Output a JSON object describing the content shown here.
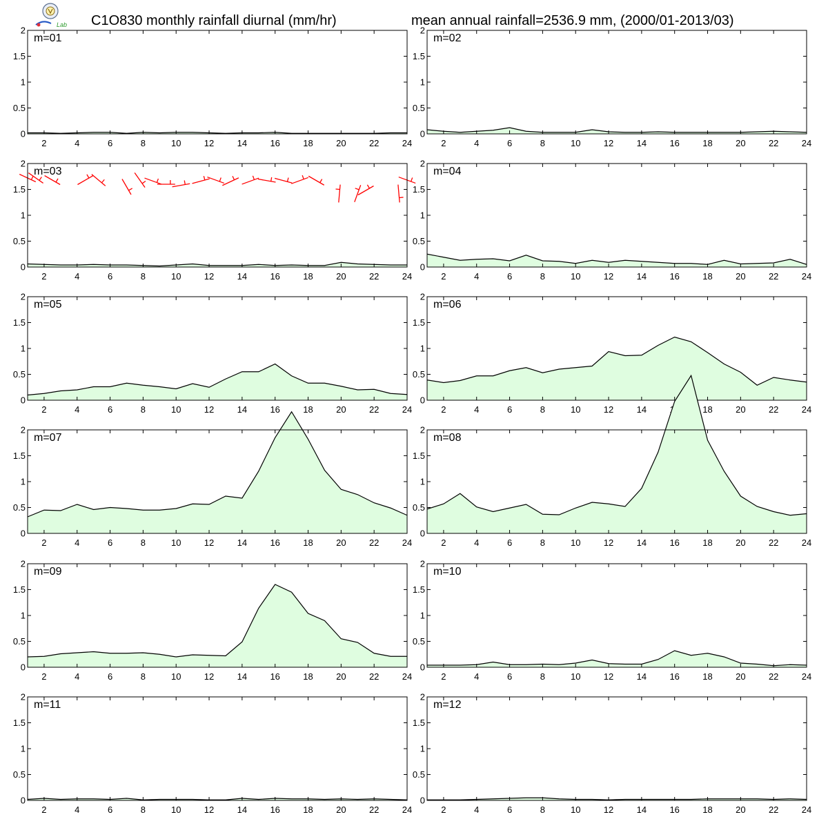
{
  "title_left": "C1O830 monthly rainfall diurnal (mm/hr)",
  "title_right": "mean annual rainfall=2536.9 mm, (2000/01-2013/03)",
  "logo": {
    "text": "Lab"
  },
  "colors": {
    "fill": "#dffde0",
    "line": "#000000",
    "wind": "#ff0000"
  },
  "chart_data": [
    {
      "type": "area",
      "panel_label": "m=01",
      "x": [
        1,
        2,
        3,
        4,
        5,
        6,
        7,
        8,
        9,
        10,
        11,
        12,
        13,
        14,
        15,
        16,
        17,
        18,
        19,
        20,
        21,
        22,
        23,
        24
      ],
      "values": [
        0.02,
        0.02,
        0.01,
        0.02,
        0.03,
        0.03,
        0.01,
        0.03,
        0.02,
        0.03,
        0.03,
        0.02,
        0.01,
        0.02,
        0.02,
        0.03,
        0.01,
        0.01,
        0.01,
        0.01,
        0.01,
        0.01,
        0.02,
        0.02
      ],
      "ylim": [
        0,
        2
      ],
      "xlim": [
        1,
        24
      ],
      "yticks": [
        0,
        0.5,
        1,
        1.5,
        2
      ],
      "xticks": [
        2,
        4,
        6,
        8,
        10,
        12,
        14,
        16,
        18,
        20,
        22,
        24
      ]
    },
    {
      "type": "area",
      "panel_label": "m=02",
      "x": [
        1,
        2,
        3,
        4,
        5,
        6,
        7,
        8,
        9,
        10,
        11,
        12,
        13,
        14,
        15,
        16,
        17,
        18,
        19,
        20,
        21,
        22,
        23,
        24
      ],
      "values": [
        0.08,
        0.05,
        0.03,
        0.05,
        0.07,
        0.12,
        0.05,
        0.03,
        0.03,
        0.03,
        0.08,
        0.04,
        0.03,
        0.03,
        0.04,
        0.03,
        0.03,
        0.03,
        0.03,
        0.03,
        0.04,
        0.05,
        0.04,
        0.03
      ],
      "ylim": [
        0,
        2
      ],
      "xlim": [
        1,
        24
      ],
      "yticks": [
        0,
        0.5,
        1,
        1.5,
        2
      ],
      "xticks": [
        2,
        4,
        6,
        8,
        10,
        12,
        14,
        16,
        18,
        20,
        22,
        24
      ]
    },
    {
      "type": "area",
      "panel_label": "m=03",
      "x": [
        1,
        2,
        3,
        4,
        5,
        6,
        7,
        8,
        9,
        10,
        11,
        12,
        13,
        14,
        15,
        16,
        17,
        18,
        19,
        20,
        21,
        22,
        23,
        24
      ],
      "values": [
        0.06,
        0.05,
        0.04,
        0.04,
        0.05,
        0.04,
        0.04,
        0.03,
        0.02,
        0.04,
        0.06,
        0.03,
        0.03,
        0.03,
        0.05,
        0.03,
        0.04,
        0.03,
        0.03,
        0.09,
        0.06,
        0.05,
        0.04,
        0.04
      ],
      "ylim": [
        0,
        2
      ],
      "xlim": [
        1,
        24
      ],
      "yticks": [
        0,
        0.5,
        1,
        1.5,
        2
      ],
      "xticks": [
        2,
        4,
        6,
        8,
        10,
        12,
        14,
        16,
        18,
        20,
        22,
        24
      ],
      "wind_barbs": [
        {
          "x": 1.0,
          "y": 1.72,
          "angle": 25
        },
        {
          "x": 1.5,
          "y": 1.72,
          "angle": 35
        },
        {
          "x": 2.5,
          "y": 1.68,
          "angle": 30
        },
        {
          "x": 4.5,
          "y": 1.68,
          "angle": -30
        },
        {
          "x": 5.3,
          "y": 1.68,
          "angle": 40
        },
        {
          "x": 7.0,
          "y": 1.55,
          "angle": 60
        },
        {
          "x": 7.8,
          "y": 1.68,
          "angle": 55
        },
        {
          "x": 8.6,
          "y": 1.66,
          "angle": 20
        },
        {
          "x": 9.4,
          "y": 1.6,
          "angle": 0
        },
        {
          "x": 10.3,
          "y": 1.58,
          "angle": -10
        },
        {
          "x": 11.5,
          "y": 1.66,
          "angle": -15
        },
        {
          "x": 12.4,
          "y": 1.68,
          "angle": 20
        },
        {
          "x": 13.3,
          "y": 1.65,
          "angle": -25
        },
        {
          "x": 14.5,
          "y": 1.66,
          "angle": -20
        },
        {
          "x": 15.5,
          "y": 1.67,
          "angle": 10
        },
        {
          "x": 16.5,
          "y": 1.67,
          "angle": 15
        },
        {
          "x": 17.5,
          "y": 1.67,
          "angle": -20
        },
        {
          "x": 18.5,
          "y": 1.67,
          "angle": 30
        },
        {
          "x": 19.9,
          "y": 1.42,
          "angle": -85
        },
        {
          "x": 21.0,
          "y": 1.42,
          "angle": -70
        },
        {
          "x": 21.5,
          "y": 1.48,
          "angle": -30
        },
        {
          "x": 23.5,
          "y": 1.42,
          "angle": 85
        },
        {
          "x": 24.0,
          "y": 1.68,
          "angle": 20
        }
      ]
    },
    {
      "type": "area",
      "panel_label": "m=04",
      "x": [
        1,
        2,
        3,
        4,
        5,
        6,
        7,
        8,
        9,
        10,
        11,
        12,
        13,
        14,
        15,
        16,
        17,
        18,
        19,
        20,
        21,
        22,
        23,
        24
      ],
      "values": [
        0.25,
        0.19,
        0.13,
        0.15,
        0.16,
        0.12,
        0.23,
        0.12,
        0.11,
        0.07,
        0.13,
        0.09,
        0.13,
        0.11,
        0.09,
        0.07,
        0.07,
        0.05,
        0.13,
        0.06,
        0.07,
        0.08,
        0.15,
        0.05
      ],
      "ylim": [
        0,
        2
      ],
      "xlim": [
        1,
        24
      ],
      "yticks": [
        0,
        0.5,
        1,
        1.5,
        2
      ],
      "xticks": [
        2,
        4,
        6,
        8,
        10,
        12,
        14,
        16,
        18,
        20,
        22,
        24
      ]
    },
    {
      "type": "area",
      "panel_label": "m=05",
      "x": [
        1,
        2,
        3,
        4,
        5,
        6,
        7,
        8,
        9,
        10,
        11,
        12,
        13,
        14,
        15,
        16,
        17,
        18,
        19,
        20,
        21,
        22,
        23,
        24
      ],
      "values": [
        0.1,
        0.13,
        0.18,
        0.2,
        0.26,
        0.26,
        0.33,
        0.29,
        0.26,
        0.22,
        0.32,
        0.25,
        0.41,
        0.55,
        0.55,
        0.7,
        0.47,
        0.33,
        0.33,
        0.27,
        0.2,
        0.21,
        0.13,
        0.11
      ],
      "ylim": [
        0,
        2
      ],
      "xlim": [
        1,
        24
      ],
      "yticks": [
        0,
        0.5,
        1,
        1.5,
        2
      ],
      "xticks": [
        2,
        4,
        6,
        8,
        10,
        12,
        14,
        16,
        18,
        20,
        22,
        24
      ]
    },
    {
      "type": "area",
      "panel_label": "m=06",
      "x": [
        1,
        2,
        3,
        4,
        5,
        6,
        7,
        8,
        9,
        10,
        11,
        12,
        13,
        14,
        15,
        16,
        17,
        18,
        19,
        20,
        21,
        22,
        23,
        24
      ],
      "values": [
        0.39,
        0.34,
        0.38,
        0.47,
        0.47,
        0.57,
        0.63,
        0.53,
        0.6,
        0.63,
        0.66,
        0.94,
        0.86,
        0.87,
        1.06,
        1.22,
        1.13,
        0.92,
        0.7,
        0.54,
        0.29,
        0.44,
        0.39,
        0.35
      ],
      "ylim": [
        0,
        2
      ],
      "xlim": [
        1,
        24
      ],
      "yticks": [
        0,
        0.5,
        1,
        1.5,
        2
      ],
      "xticks": [
        2,
        4,
        6,
        8,
        10,
        12,
        14,
        16,
        18,
        20,
        22,
        24
      ]
    },
    {
      "type": "area",
      "panel_label": "m=07",
      "x": [
        1,
        2,
        3,
        4,
        5,
        6,
        7,
        8,
        9,
        10,
        11,
        12,
        13,
        14,
        15,
        16,
        17,
        18,
        19,
        20,
        21,
        22,
        23,
        24
      ],
      "values": [
        0.32,
        0.45,
        0.44,
        0.56,
        0.46,
        0.5,
        0.48,
        0.45,
        0.45,
        0.48,
        0.57,
        0.56,
        0.72,
        0.68,
        1.2,
        1.85,
        2.35,
        1.82,
        1.22,
        0.85,
        0.75,
        0.59,
        0.49,
        0.35
      ],
      "ylim": [
        0,
        2
      ],
      "xlim": [
        1,
        24
      ],
      "yticks": [
        0,
        0.5,
        1,
        1.5,
        2
      ],
      "xticks": [
        2,
        4,
        6,
        8,
        10,
        12,
        14,
        16,
        18,
        20,
        22,
        24
      ]
    },
    {
      "type": "area",
      "panel_label": "m=08",
      "x": [
        1,
        2,
        3,
        4,
        5,
        6,
        7,
        8,
        9,
        10,
        11,
        12,
        13,
        14,
        15,
        16,
        17,
        18,
        19,
        20,
        21,
        22,
        23,
        24
      ],
      "values": [
        0.47,
        0.57,
        0.77,
        0.51,
        0.42,
        0.49,
        0.56,
        0.37,
        0.36,
        0.49,
        0.6,
        0.57,
        0.52,
        0.87,
        1.57,
        2.55,
        3.05,
        1.8,
        1.2,
        0.72,
        0.52,
        0.42,
        0.35,
        0.38
      ],
      "ylim": [
        0,
        2
      ],
      "xlim": [
        1,
        24
      ],
      "yticks": [
        0,
        0.5,
        1,
        1.5,
        2
      ],
      "xticks": [
        2,
        4,
        6,
        8,
        10,
        12,
        14,
        16,
        18,
        20,
        22,
        24
      ]
    },
    {
      "type": "area",
      "panel_label": "m=09",
      "x": [
        1,
        2,
        3,
        4,
        5,
        6,
        7,
        8,
        9,
        10,
        11,
        12,
        13,
        14,
        15,
        16,
        17,
        18,
        19,
        20,
        21,
        22,
        23,
        24
      ],
      "values": [
        0.2,
        0.21,
        0.26,
        0.28,
        0.3,
        0.27,
        0.27,
        0.28,
        0.25,
        0.2,
        0.24,
        0.23,
        0.22,
        0.49,
        1.14,
        1.6,
        1.45,
        1.04,
        0.9,
        0.55,
        0.48,
        0.27,
        0.21,
        0.21
      ],
      "ylim": [
        0,
        2
      ],
      "xlim": [
        1,
        24
      ],
      "yticks": [
        0,
        0.5,
        1,
        1.5,
        2
      ],
      "xticks": [
        2,
        4,
        6,
        8,
        10,
        12,
        14,
        16,
        18,
        20,
        22,
        24
      ]
    },
    {
      "type": "area",
      "panel_label": "m=10",
      "x": [
        1,
        2,
        3,
        4,
        5,
        6,
        7,
        8,
        9,
        10,
        11,
        12,
        13,
        14,
        15,
        16,
        17,
        18,
        19,
        20,
        21,
        22,
        23,
        24
      ],
      "values": [
        0.04,
        0.04,
        0.04,
        0.05,
        0.1,
        0.05,
        0.05,
        0.06,
        0.05,
        0.08,
        0.14,
        0.07,
        0.06,
        0.06,
        0.15,
        0.32,
        0.23,
        0.27,
        0.2,
        0.08,
        0.06,
        0.03,
        0.05,
        0.04
      ],
      "ylim": [
        0,
        2
      ],
      "xlim": [
        1,
        24
      ],
      "yticks": [
        0,
        0.5,
        1,
        1.5,
        2
      ],
      "xticks": [
        2,
        4,
        6,
        8,
        10,
        12,
        14,
        16,
        18,
        20,
        22,
        24
      ]
    },
    {
      "type": "area",
      "panel_label": "m=11",
      "x": [
        1,
        2,
        3,
        4,
        5,
        6,
        7,
        8,
        9,
        10,
        11,
        12,
        13,
        14,
        15,
        16,
        17,
        18,
        19,
        20,
        21,
        22,
        23,
        24
      ],
      "values": [
        0.02,
        0.04,
        0.02,
        0.03,
        0.03,
        0.02,
        0.04,
        0.01,
        0.02,
        0.02,
        0.02,
        0.01,
        0.01,
        0.04,
        0.02,
        0.04,
        0.03,
        0.03,
        0.02,
        0.03,
        0.02,
        0.03,
        0.02,
        0.01
      ],
      "ylim": [
        0,
        2
      ],
      "xlim": [
        1,
        24
      ],
      "yticks": [
        0,
        0.5,
        1,
        1.5,
        2
      ],
      "xticks": [
        2,
        4,
        6,
        8,
        10,
        12,
        14,
        16,
        18,
        20,
        22,
        24
      ]
    },
    {
      "type": "area",
      "panel_label": "m=12",
      "x": [
        1,
        2,
        3,
        4,
        5,
        6,
        7,
        8,
        9,
        10,
        11,
        12,
        13,
        14,
        15,
        16,
        17,
        18,
        19,
        20,
        21,
        22,
        23,
        24
      ],
      "values": [
        0.01,
        0.01,
        0.01,
        0.02,
        0.03,
        0.04,
        0.05,
        0.05,
        0.03,
        0.02,
        0.02,
        0.01,
        0.02,
        0.02,
        0.02,
        0.02,
        0.02,
        0.03,
        0.03,
        0.03,
        0.03,
        0.02,
        0.03,
        0.02
      ],
      "ylim": [
        0,
        2
      ],
      "xlim": [
        1,
        24
      ],
      "yticks": [
        0,
        0.5,
        1,
        1.5,
        2
      ],
      "xticks": [
        2,
        4,
        6,
        8,
        10,
        12,
        14,
        16,
        18,
        20,
        22,
        24
      ]
    }
  ]
}
